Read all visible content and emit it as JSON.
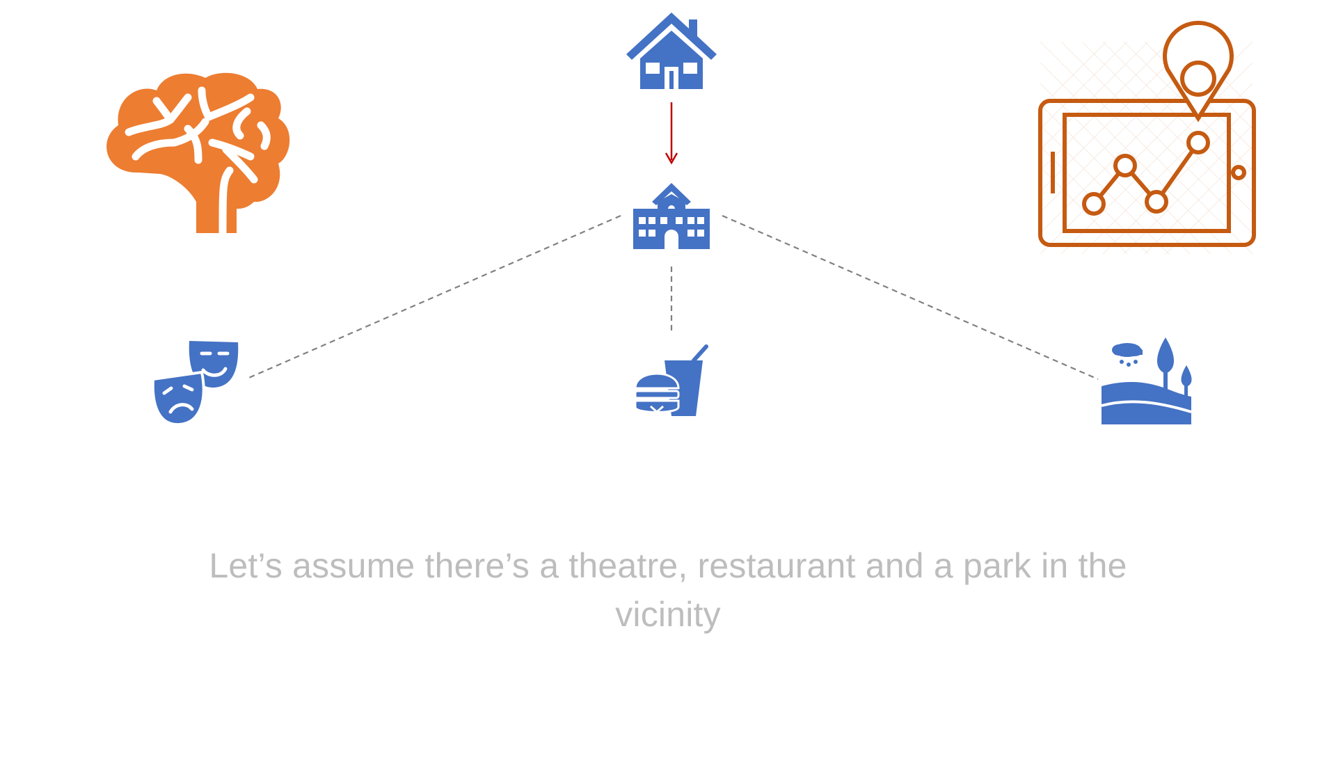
{
  "caption": {
    "line1": "Let’s assume there’s a theatre, restaurant and a park in the",
    "line2": "vicinity"
  },
  "icons": {
    "brain": "brain-icon",
    "house": "house-icon",
    "school": "school-icon",
    "map_tablet": "tablet-map-icon",
    "theatre": "theatre-masks-icon",
    "restaurant": "fast-food-icon",
    "park": "park-icon"
  },
  "colors": {
    "blue_icons": "#4472c4",
    "orange_icons": "#ed7d31",
    "dark_orange_outline": "#c55a11",
    "arrow": "#c00000",
    "dashed_lines": "#808080",
    "caption_text": "#bdbdbd"
  }
}
